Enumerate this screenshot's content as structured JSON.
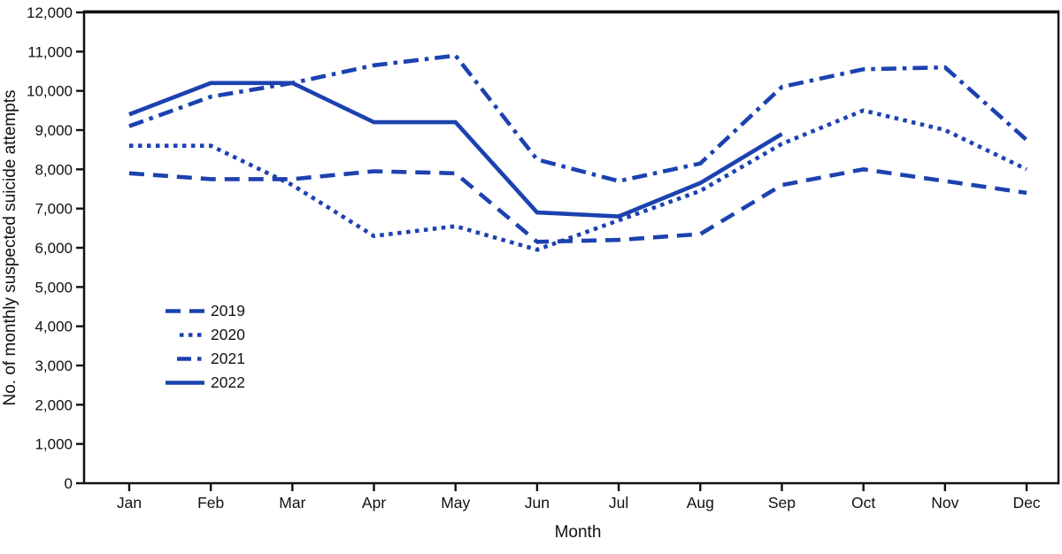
{
  "figure": {
    "y_axis_title": "No. of monthly suspected suicide attempts",
    "x_axis_title": "Month"
  },
  "chart_data": {
    "type": "line",
    "title": "",
    "xlabel": "Month",
    "ylabel": "No. of monthly suspected suicide attempts",
    "x": [
      "Jan",
      "Feb",
      "Mar",
      "Apr",
      "May",
      "Jun",
      "Jul",
      "Aug",
      "Sep",
      "Oct",
      "Nov",
      "Dec"
    ],
    "ylim": [
      0,
      12000
    ],
    "y_tick_interval": 1000,
    "y_tick_labels": [
      "0",
      "1,000",
      "2,000",
      "3,000",
      "4,000",
      "5,000",
      "6,000",
      "7,000",
      "8,000",
      "9,000",
      "10,000",
      "11,000",
      "12,000"
    ],
    "grid": false,
    "legend_position": "inside-left-middle",
    "line_color": "#1c42b0",
    "axis_color": "#111111",
    "series": [
      {
        "name": "2019",
        "style": "dashed",
        "values": [
          7900,
          7750,
          7750,
          7950,
          7900,
          6150,
          6200,
          6350,
          7600,
          8000,
          7700,
          7400
        ]
      },
      {
        "name": "2020",
        "style": "dotted",
        "values": [
          8600,
          8600,
          7600,
          6300,
          6550,
          5950,
          6700,
          7450,
          8650,
          9500,
          9000,
          8000
        ]
      },
      {
        "name": "2021",
        "style": "dash-dot",
        "values": [
          9100,
          9850,
          10200,
          10650,
          10900,
          8250,
          7700,
          8150,
          10100,
          10550,
          10600,
          8750
        ]
      },
      {
        "name": "2022",
        "style": "solid",
        "values": [
          9400,
          10200,
          10200,
          9200,
          9200,
          6900,
          6800,
          7650,
          8900,
          null,
          null,
          null
        ]
      }
    ]
  }
}
